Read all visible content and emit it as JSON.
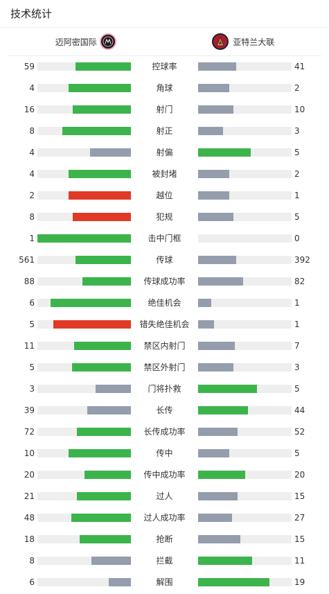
{
  "page_title": "技术统计",
  "home_team": {
    "name": "迈阿密国际"
  },
  "away_team": {
    "name": "亚特兰大联"
  },
  "colors": {
    "green": "#3cb44b",
    "gray": "#949dac",
    "red": "#e03a26",
    "track": "#eeeeee"
  },
  "stats": [
    {
      "label": "控球率",
      "home": 59,
      "away": 41,
      "home_pct": 59,
      "away_pct": 41,
      "home_color": "green",
      "away_color": "gray"
    },
    {
      "label": "角球",
      "home": 4,
      "away": 2,
      "home_pct": 67,
      "away_pct": 33,
      "home_color": "green",
      "away_color": "gray"
    },
    {
      "label": "射门",
      "home": 16,
      "away": 10,
      "home_pct": 62,
      "away_pct": 38,
      "home_color": "green",
      "away_color": "gray"
    },
    {
      "label": "射正",
      "home": 8,
      "away": 3,
      "home_pct": 73,
      "away_pct": 27,
      "home_color": "green",
      "away_color": "gray"
    },
    {
      "label": "射偏",
      "home": 4,
      "away": 5,
      "home_pct": 44,
      "away_pct": 56,
      "home_color": "gray",
      "away_color": "green"
    },
    {
      "label": "被封堵",
      "home": 4,
      "away": 2,
      "home_pct": 67,
      "away_pct": 33,
      "home_color": "green",
      "away_color": "gray"
    },
    {
      "label": "越位",
      "home": 2,
      "away": 1,
      "home_pct": 67,
      "away_pct": 33,
      "home_color": "red",
      "away_color": "gray"
    },
    {
      "label": "犯规",
      "home": 8,
      "away": 5,
      "home_pct": 62,
      "away_pct": 38,
      "home_color": "red",
      "away_color": "gray"
    },
    {
      "label": "击中门框",
      "home": 1,
      "away": 0,
      "home_pct": 100,
      "away_pct": 0,
      "home_color": "green",
      "away_color": "gray"
    },
    {
      "label": "传球",
      "home": 561,
      "away": 392,
      "home_pct": 59,
      "away_pct": 41,
      "home_color": "green",
      "away_color": "gray"
    },
    {
      "label": "传球成功率",
      "home": 88,
      "away": 82,
      "home_pct": 52,
      "away_pct": 48,
      "home_color": "green",
      "away_color": "gray"
    },
    {
      "label": "绝佳机会",
      "home": 6,
      "away": 1,
      "home_pct": 86,
      "away_pct": 14,
      "home_color": "green",
      "away_color": "gray"
    },
    {
      "label": "错失绝佳机会",
      "home": 5,
      "away": 1,
      "home_pct": 83,
      "away_pct": 17,
      "home_color": "red",
      "away_color": "gray"
    },
    {
      "label": "禁区内射门",
      "home": 11,
      "away": 7,
      "home_pct": 61,
      "away_pct": 39,
      "home_color": "green",
      "away_color": "gray"
    },
    {
      "label": "禁区外射门",
      "home": 5,
      "away": 3,
      "home_pct": 63,
      "away_pct": 38,
      "home_color": "green",
      "away_color": "gray"
    },
    {
      "label": "门将扑救",
      "home": 3,
      "away": 5,
      "home_pct": 38,
      "away_pct": 63,
      "home_color": "gray",
      "away_color": "green"
    },
    {
      "label": "长传",
      "home": 39,
      "away": 44,
      "home_pct": 47,
      "away_pct": 53,
      "home_color": "gray",
      "away_color": "green"
    },
    {
      "label": "长传成功率",
      "home": 72,
      "away": 52,
      "home_pct": 58,
      "away_pct": 42,
      "home_color": "green",
      "away_color": "gray"
    },
    {
      "label": "传中",
      "home": 10,
      "away": 5,
      "home_pct": 67,
      "away_pct": 33,
      "home_color": "green",
      "away_color": "gray"
    },
    {
      "label": "传中成功率",
      "home": 20,
      "away": 20,
      "home_pct": 50,
      "away_pct": 50,
      "home_color": "green",
      "away_color": "green"
    },
    {
      "label": "过人",
      "home": 21,
      "away": 15,
      "home_pct": 58,
      "away_pct": 42,
      "home_color": "green",
      "away_color": "gray"
    },
    {
      "label": "过人成功率",
      "home": 48,
      "away": 27,
      "home_pct": 64,
      "away_pct": 36,
      "home_color": "green",
      "away_color": "gray"
    },
    {
      "label": "抢断",
      "home": 18,
      "away": 15,
      "home_pct": 55,
      "away_pct": 45,
      "home_color": "green",
      "away_color": "gray"
    },
    {
      "label": "拦截",
      "home": 8,
      "away": 11,
      "home_pct": 42,
      "away_pct": 58,
      "home_color": "gray",
      "away_color": "green"
    },
    {
      "label": "解围",
      "home": 6,
      "away": 19,
      "home_pct": 24,
      "away_pct": 76,
      "home_color": "gray",
      "away_color": "green"
    }
  ]
}
